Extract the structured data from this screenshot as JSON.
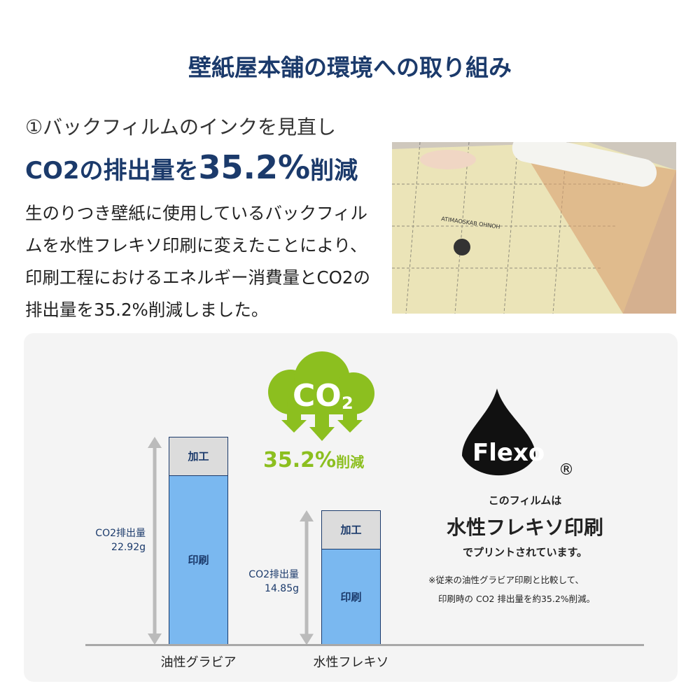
{
  "title": "壁紙屋本舗の環境への取り組み",
  "section": {
    "subtitle": "①バックフィルムのインクを見直し",
    "headline_pre": "CO2の排出量を",
    "headline_num": "35.2%",
    "headline_post": "削減",
    "body": "生のりつき壁紙に使用しているバックフィルムを水性フレキソ印刷に変えたことにより、印刷工程におけるエネルギー消費量とCO2の排出量を35.2%削減しました。"
  },
  "photo": {
    "print_text": "ATIMAOSKAB OHNOH"
  },
  "badge": {
    "cloud_text": "CO",
    "cloud_sub": "2",
    "reduction": "35.2%",
    "reduction_suffix": "削減",
    "color": "#8cbf1f"
  },
  "flexo": {
    "logo": "Flexo",
    "reg": "®",
    "line1": "このフィルムは",
    "line2": "水性フレキソ印刷",
    "line3": "でプリントされています。",
    "note1": "※従来の油性グラビア印刷と比較して、",
    "note2": "印刷時の CO2 排出量を約35.2%削減。"
  },
  "chart_data": {
    "type": "bar",
    "stacked": true,
    "categories": [
      "油性グラビア",
      "水性フレキソ"
    ],
    "series": [
      {
        "name": "印刷",
        "values": [
          18.7,
          10.6
        ],
        "color": "#7ab8f0"
      },
      {
        "name": "加工",
        "values": [
          4.22,
          4.25
        ],
        "color": "#dcdcdc"
      }
    ],
    "totals": [
      22.92,
      14.85
    ],
    "total_labels": [
      [
        "CO2排出量",
        "22.92g"
      ],
      [
        "CO2排出量",
        "14.85g"
      ]
    ],
    "unit": "g"
  }
}
